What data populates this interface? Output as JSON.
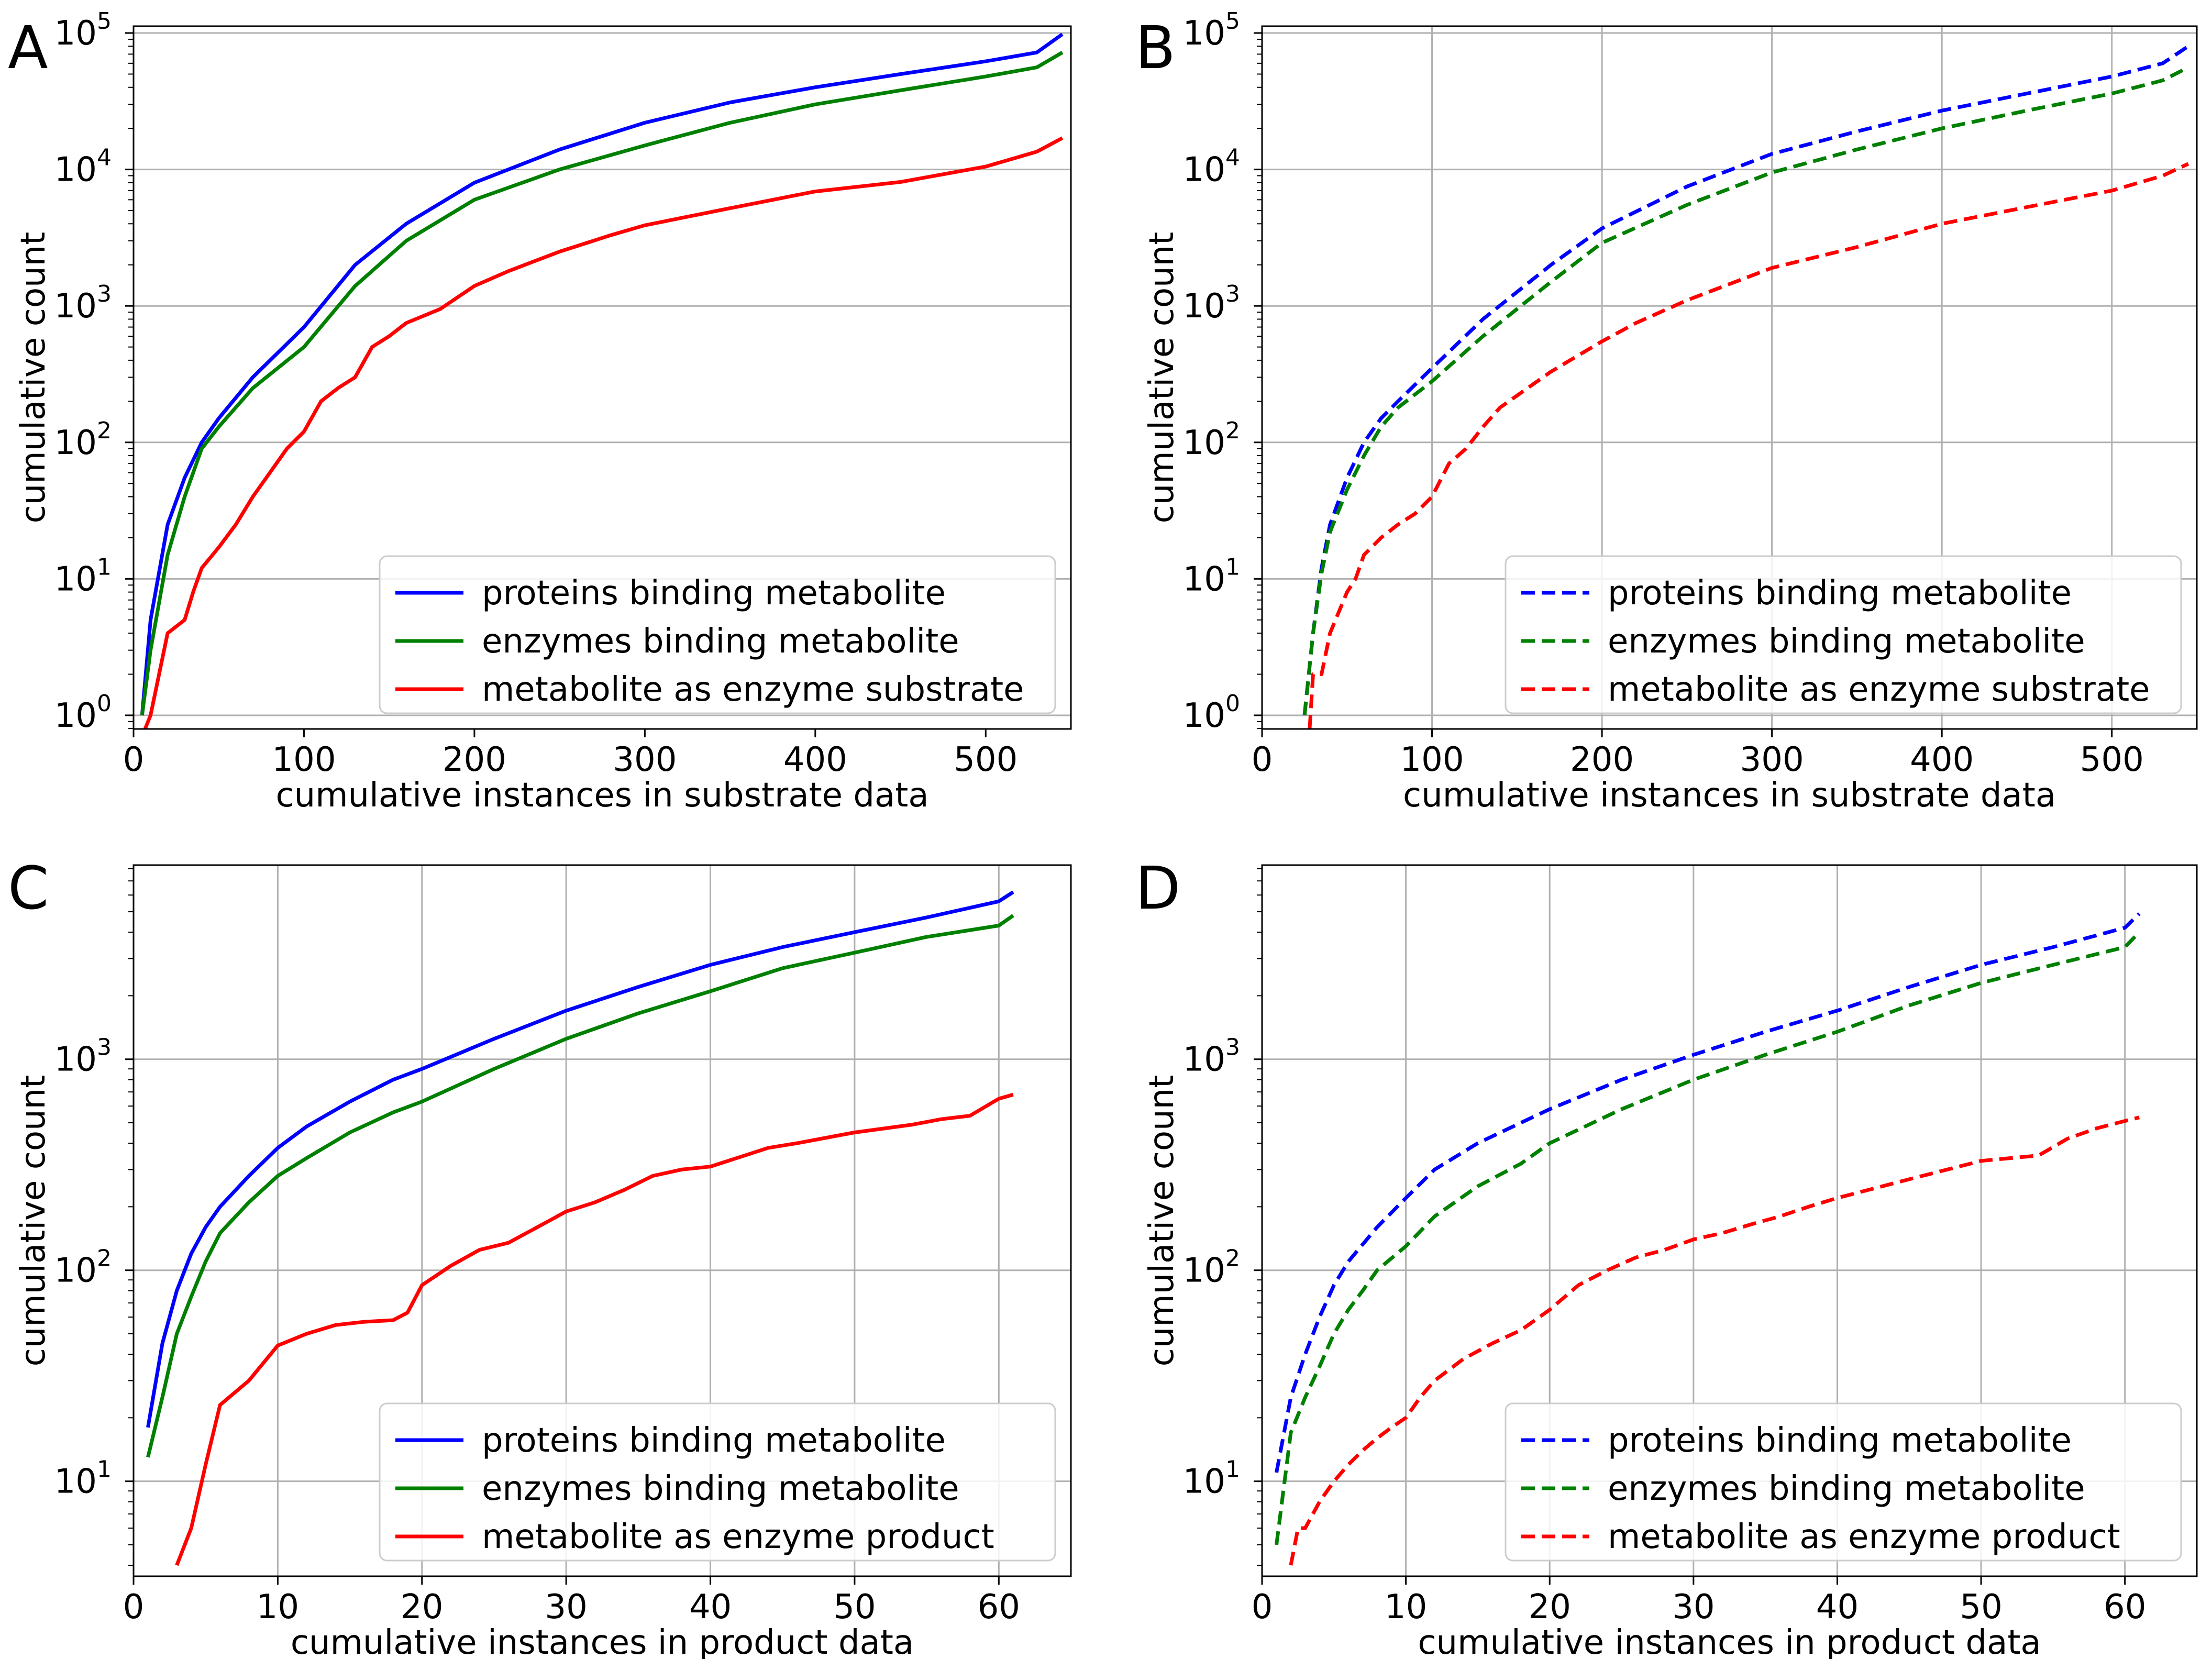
{
  "chart_data": [
    {
      "panel": "A",
      "type": "line",
      "yscale": "log",
      "xlim": [
        0,
        550
      ],
      "ylim_exp": [
        -0.1,
        5.05
      ],
      "x_ticks": [
        0,
        100,
        200,
        300,
        400,
        500
      ],
      "y_ticks_exp": [
        0,
        1,
        2,
        3,
        4,
        5
      ],
      "grid": "y-only",
      "xlabel": "cumulative instances in substrate data",
      "ylabel": "cumulative count",
      "legend": "bottom-right",
      "line_style": "solid",
      "series": [
        {
          "name": "proteins binding metabolite",
          "color": "#0000ff",
          "x": [
            5,
            10,
            20,
            30,
            40,
            50,
            70,
            100,
            130,
            160,
            200,
            250,
            300,
            350,
            400,
            450,
            500,
            530,
            545
          ],
          "y": [
            1,
            5,
            25,
            55,
            100,
            150,
            300,
            700,
            2000,
            4000,
            8000,
            14000,
            22000,
            31000,
            40000,
            50000,
            62000,
            72000,
            98000
          ]
        },
        {
          "name": "enzymes binding metabolite",
          "color": "#008000",
          "x": [
            5,
            10,
            20,
            30,
            40,
            50,
            70,
            100,
            130,
            160,
            200,
            250,
            300,
            350,
            400,
            450,
            500,
            530,
            545
          ],
          "y": [
            1,
            3,
            15,
            40,
            90,
            130,
            250,
            500,
            1400,
            3000,
            6000,
            10000,
            15000,
            22000,
            30000,
            38000,
            48000,
            56000,
            72000
          ]
        },
        {
          "name": "metabolite as enzyme substrate",
          "color": "#ff0000",
          "x": [
            5,
            10,
            15,
            20,
            30,
            35,
            40,
            50,
            60,
            70,
            80,
            90,
            100,
            110,
            120,
            130,
            140,
            150,
            160,
            180,
            200,
            220,
            250,
            280,
            300,
            350,
            400,
            450,
            500,
            530,
            545
          ],
          "y": [
            0.7,
            1,
            2,
            4,
            5,
            8,
            12,
            17,
            25,
            40,
            60,
            90,
            120,
            200,
            250,
            300,
            500,
            600,
            750,
            950,
            1400,
            1800,
            2500,
            3300,
            3900,
            5200,
            6900,
            8100,
            10500,
            13500,
            17000
          ]
        }
      ]
    },
    {
      "panel": "B",
      "type": "line",
      "yscale": "log",
      "xlim": [
        0,
        550
      ],
      "ylim_exp": [
        -0.1,
        5.05
      ],
      "x_ticks": [
        0,
        100,
        200,
        300,
        400,
        500
      ],
      "y_ticks_exp": [
        0,
        1,
        2,
        3,
        4,
        5
      ],
      "grid": "both",
      "xlabel": "cumulative instances in substrate data",
      "ylabel": "cumulative count",
      "legend": "bottom-right",
      "line_style": "dashed",
      "series": [
        {
          "name": "proteins binding metabolite",
          "color": "#0000ff",
          "x": [
            25,
            30,
            35,
            40,
            50,
            60,
            70,
            80,
            100,
            130,
            170,
            200,
            250,
            300,
            350,
            400,
            450,
            500,
            530,
            545
          ],
          "y": [
            1,
            4,
            12,
            25,
            55,
            100,
            150,
            200,
            350,
            800,
            2000,
            3700,
            7500,
            13000,
            19000,
            27000,
            36000,
            48000,
            60000,
            80000
          ]
        },
        {
          "name": "enzymes binding metabolite",
          "color": "#008000",
          "x": [
            25,
            30,
            35,
            40,
            50,
            60,
            70,
            80,
            100,
            130,
            170,
            200,
            250,
            300,
            350,
            400,
            450,
            500,
            530,
            545
          ],
          "y": [
            1,
            4,
            11,
            22,
            45,
            80,
            130,
            180,
            280,
            600,
            1500,
            2900,
            5500,
            9500,
            14000,
            20000,
            27000,
            36000,
            45000,
            56000
          ]
        },
        {
          "name": "metabolite as enzyme substrate",
          "color": "#ff0000",
          "x": [
            28,
            30,
            35,
            40,
            50,
            55,
            60,
            70,
            80,
            90,
            100,
            110,
            120,
            130,
            140,
            150,
            170,
            200,
            220,
            250,
            300,
            350,
            400,
            450,
            500,
            530,
            545
          ],
          "y": [
            0.8,
            2,
            2,
            4,
            8,
            10,
            15,
            20,
            25,
            30,
            40,
            70,
            90,
            130,
            180,
            220,
            330,
            550,
            750,
            1100,
            1900,
            2700,
            4000,
            5300,
            7000,
            9000,
            11000
          ]
        }
      ]
    },
    {
      "panel": "C",
      "type": "line",
      "yscale": "log",
      "xlim": [
        0,
        65
      ],
      "ylim_exp": [
        0.55,
        3.92
      ],
      "x_ticks": [
        0,
        10,
        20,
        30,
        40,
        50,
        60
      ],
      "y_ticks_exp": [
        1,
        2,
        3
      ],
      "grid": "both",
      "xlabel": "cumulative instances in product data",
      "ylabel": "cumulative count",
      "legend": "bottom-right",
      "line_style": "solid",
      "series": [
        {
          "name": "proteins binding metabolite",
          "color": "#0000ff",
          "x": [
            1,
            2,
            3,
            4,
            5,
            6,
            8,
            10,
            12,
            15,
            18,
            20,
            25,
            30,
            35,
            40,
            45,
            50,
            55,
            60,
            61
          ],
          "y": [
            18,
            45,
            80,
            120,
            160,
            200,
            280,
            380,
            480,
            630,
            800,
            900,
            1250,
            1700,
            2200,
            2800,
            3400,
            4000,
            4700,
            5600,
            6200
          ]
        },
        {
          "name": "enzymes binding metabolite",
          "color": "#008000",
          "x": [
            1,
            2,
            3,
            4,
            5,
            6,
            8,
            10,
            12,
            15,
            18,
            20,
            25,
            30,
            35,
            40,
            45,
            50,
            55,
            60,
            61
          ],
          "y": [
            13,
            25,
            50,
            75,
            110,
            150,
            210,
            280,
            340,
            450,
            560,
            630,
            900,
            1250,
            1650,
            2100,
            2700,
            3200,
            3800,
            4300,
            4800
          ]
        },
        {
          "name": "metabolite as enzyme product",
          "color": "#ff0000",
          "x": [
            3,
            4,
            5,
            6,
            8,
            10,
            12,
            14,
            16,
            18,
            19,
            20,
            22,
            24,
            26,
            28,
            30,
            32,
            34,
            36,
            38,
            40,
            44,
            46,
            50,
            54,
            56,
            58,
            60,
            61
          ],
          "y": [
            4,
            6,
            12,
            23,
            30,
            44,
            50,
            55,
            57,
            58,
            63,
            85,
            105,
            125,
            135,
            160,
            190,
            210,
            240,
            280,
            300,
            310,
            380,
            400,
            450,
            490,
            520,
            540,
            650,
            680
          ]
        }
      ]
    },
    {
      "panel": "D",
      "type": "line",
      "yscale": "log",
      "xlim": [
        0,
        65
      ],
      "ylim_exp": [
        0.55,
        3.92
      ],
      "x_ticks": [
        0,
        10,
        20,
        30,
        40,
        50,
        60
      ],
      "y_ticks_exp": [
        1,
        2,
        3
      ],
      "grid": "both",
      "xlabel": "cumulative instances in product data",
      "ylabel": "cumulative count",
      "legend": "bottom-right",
      "line_style": "dashed",
      "series": [
        {
          "name": "proteins binding metabolite",
          "color": "#0000ff",
          "x": [
            1,
            2,
            3,
            4,
            5,
            6,
            8,
            10,
            12,
            15,
            18,
            20,
            25,
            30,
            35,
            40,
            45,
            50,
            55,
            60,
            61
          ],
          "y": [
            11,
            25,
            40,
            60,
            85,
            110,
            160,
            220,
            300,
            400,
            500,
            580,
            800,
            1050,
            1350,
            1700,
            2200,
            2800,
            3400,
            4200,
            4900
          ]
        },
        {
          "name": "enzymes binding metabolite",
          "color": "#008000",
          "x": [
            1,
            2,
            3,
            4,
            5,
            6,
            7,
            8,
            10,
            12,
            15,
            18,
            20,
            25,
            30,
            35,
            40,
            45,
            50,
            55,
            60,
            61
          ],
          "y": [
            5,
            17,
            25,
            35,
            50,
            65,
            80,
            100,
            130,
            180,
            250,
            320,
            400,
            580,
            800,
            1050,
            1350,
            1800,
            2300,
            2800,
            3400,
            4000
          ]
        },
        {
          "name": "metabolite as enzyme product",
          "color": "#ff0000",
          "x": [
            2,
            2.5,
            3,
            4,
            5,
            6,
            7,
            8,
            9,
            10,
            11,
            12,
            14,
            16,
            18,
            20,
            22,
            24,
            26,
            28,
            30,
            32,
            34,
            36,
            38,
            40,
            45,
            50,
            54,
            56,
            58,
            60,
            61
          ],
          "y": [
            4,
            6,
            6,
            8,
            10,
            12,
            14,
            16,
            18,
            20,
            25,
            30,
            38,
            45,
            52,
            65,
            85,
            100,
            115,
            125,
            140,
            150,
            165,
            180,
            200,
            220,
            270,
            330,
            350,
            420,
            470,
            510,
            530
          ]
        }
      ]
    }
  ]
}
